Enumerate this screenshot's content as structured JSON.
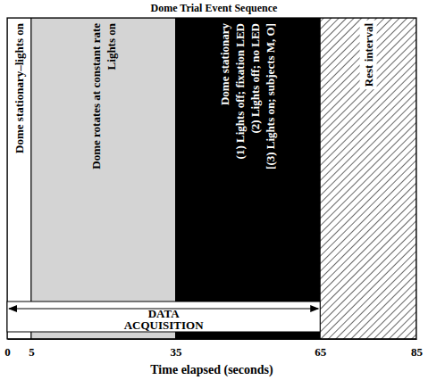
{
  "chart_data": {
    "type": "timeline",
    "title": "Dome Trial Event Sequence",
    "xlabel": "Time elapsed (seconds)",
    "xlim": [
      0,
      85
    ],
    "xticks": [
      0,
      5,
      35,
      65,
      85
    ],
    "segments": [
      {
        "start": 0,
        "end": 5,
        "color": "#ffffff",
        "label": [
          "Dome stationary–lights on"
        ]
      },
      {
        "start": 5,
        "end": 35,
        "color": "#d4d4d4",
        "label": [
          "Dome rotates at constant rate",
          "Lights on"
        ]
      },
      {
        "start": 35,
        "end": 65,
        "color": "#000000",
        "label": [
          "Dome stationary",
          "(1) Lights off; fixation LED",
          "(2) Lights off; no LED",
          "[(3) Lights on; subjects M, O]"
        ]
      },
      {
        "start": 65,
        "end": 85,
        "color": "#444444",
        "line_style": "hatched",
        "label": [
          "Rest interval"
        ]
      }
    ],
    "annotation": {
      "text": [
        "DATA",
        "ACQUISITION"
      ],
      "start": 0,
      "end": 65
    }
  }
}
